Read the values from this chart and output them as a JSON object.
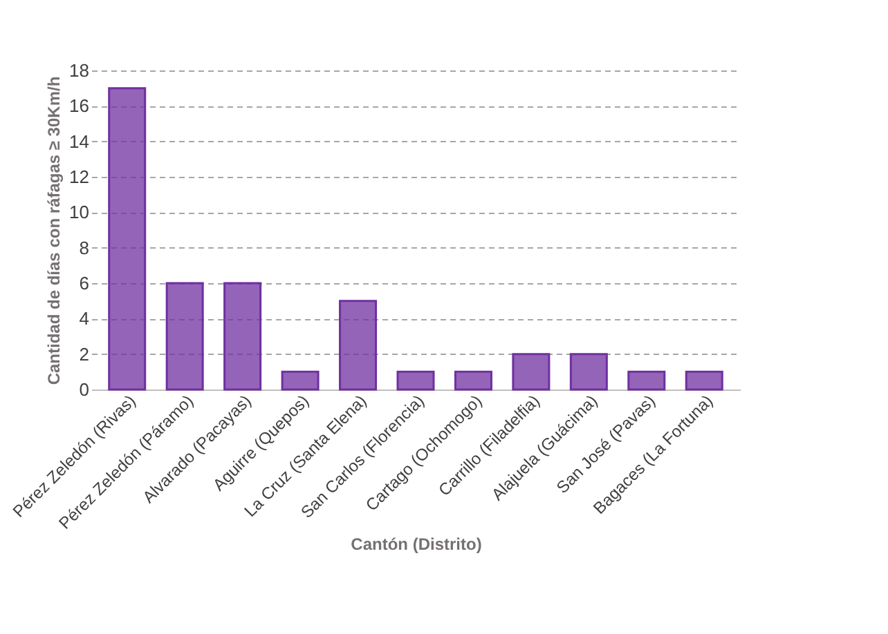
{
  "chart_data": {
    "type": "bar",
    "categories": [
      "Pérez Zeledón (Rivas)",
      "Pérez Zeledón (Páramo)",
      "Alvarado (Pacayas)",
      "Aguirre (Quepos)",
      "La Cruz (Santa Elena)",
      "San Carlos (Florencia)",
      "Cartago (Ochomogo)",
      "Carrillo (Filadelfia)",
      "Alajuela (Guácima)",
      "San José (Pavas)",
      "Bagaces (La Fortuna)"
    ],
    "values": [
      17,
      6,
      6,
      1,
      5,
      1,
      1,
      2,
      2,
      1,
      1
    ],
    "color": "#7030a0",
    "xlabel": "Cantón (Distrito)",
    "ylabel": "Cantidad de días con ráfagas ≥ 30Km/h",
    "ylim": [
      0,
      18
    ],
    "yticks": [
      0,
      2,
      4,
      6,
      8,
      10,
      12,
      14,
      16,
      18
    ],
    "grid": "y"
  }
}
